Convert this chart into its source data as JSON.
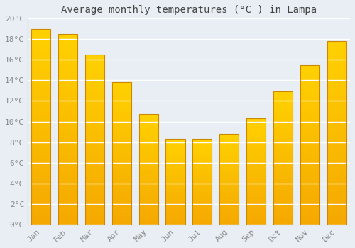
{
  "title": "Average monthly temperatures (°C ) in Lampa",
  "months": [
    "Jan",
    "Feb",
    "Mar",
    "Apr",
    "May",
    "Jun",
    "Jul",
    "Aug",
    "Sep",
    "Oct",
    "Nov",
    "Dec"
  ],
  "values": [
    19.0,
    18.5,
    16.5,
    13.8,
    10.7,
    8.3,
    8.3,
    8.8,
    10.3,
    12.9,
    15.5,
    17.8
  ],
  "bar_color_top": "#FFD060",
  "bar_color_bottom": "#F5A800",
  "bar_edge_color": "#CC8800",
  "background_color": "#E8EEF4",
  "plot_bg_color": "#E8EEF4",
  "grid_color": "#FFFFFF",
  "ylim": [
    0,
    20
  ],
  "yticks": [
    0,
    2,
    4,
    6,
    8,
    10,
    12,
    14,
    16,
    18,
    20
  ],
  "title_fontsize": 10,
  "tick_fontsize": 8,
  "tick_color": "#888888",
  "title_color": "#444444",
  "spine_color": "#AAAAAA"
}
